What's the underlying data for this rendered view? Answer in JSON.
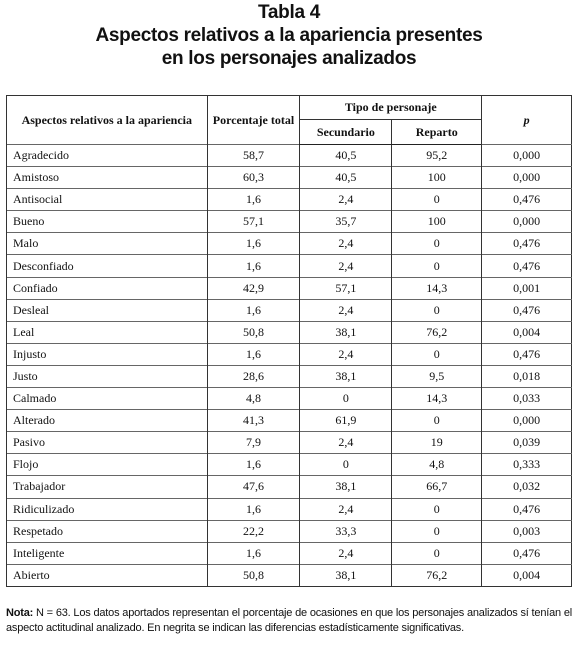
{
  "header": {
    "title": "Tabla 4",
    "subtitle_lines": [
      "Aspectos relativos a la apariencia presentes",
      "en los personajes analizados"
    ]
  },
  "table": {
    "columns": {
      "aspect": "Aspectos relativos a la apariencia",
      "total": "Porcentaje total",
      "group": "Tipo de personaje",
      "secundario": "Secundario",
      "reparto": "Reparto",
      "p": "p"
    },
    "rows": [
      [
        "Agradecido",
        "58,7",
        "40,5",
        "95,2",
        "0,000"
      ],
      [
        "Amistoso",
        "60,3",
        "40,5",
        "100",
        "0,000"
      ],
      [
        "Antisocial",
        "1,6",
        "2,4",
        "0",
        "0,476"
      ],
      [
        "Bueno",
        "57,1",
        "35,7",
        "100",
        "0,000"
      ],
      [
        "Malo",
        "1,6",
        "2,4",
        "0",
        "0,476"
      ],
      [
        "Desconfiado",
        "1,6",
        "2,4",
        "0",
        "0,476"
      ],
      [
        "Confiado",
        "42,9",
        "57,1",
        "14,3",
        "0,001"
      ],
      [
        "Desleal",
        "1,6",
        "2,4",
        "0",
        "0,476"
      ],
      [
        "Leal",
        "50,8",
        "38,1",
        "76,2",
        "0,004"
      ],
      [
        "Injusto",
        "1,6",
        "2,4",
        "0",
        "0,476"
      ],
      [
        "Justo",
        "28,6",
        "38,1",
        "9,5",
        "0,018"
      ],
      [
        "Calmado",
        "4,8",
        "0",
        "14,3",
        "0,033"
      ],
      [
        "Alterado",
        "41,3",
        "61,9",
        "0",
        "0,000"
      ],
      [
        "Pasivo",
        "7,9",
        "2,4",
        "19",
        "0,039"
      ],
      [
        "Flojo",
        "1,6",
        "0",
        "4,8",
        "0,333"
      ],
      [
        "Trabajador",
        "47,6",
        "38,1",
        "66,7",
        "0,032"
      ],
      [
        "Ridiculizado",
        "1,6",
        "2,4",
        "0",
        "0,476"
      ],
      [
        "Respetado",
        "22,2",
        "33,3",
        "0",
        "0,003"
      ],
      [
        "Inteligente",
        "1,6",
        "2,4",
        "0",
        "0,476"
      ],
      [
        "Abierto",
        "50,8",
        "38,1",
        "76,2",
        "0,004"
      ]
    ]
  },
  "note": {
    "label": "Nota:",
    "text": "N = 63. Los datos aportados representan el porcentaje de ocasiones en que los personajes analizados sí tenían el aspecto actitudinal analizado. En negrita se indican las diferencias estadísticamente significativas."
  }
}
